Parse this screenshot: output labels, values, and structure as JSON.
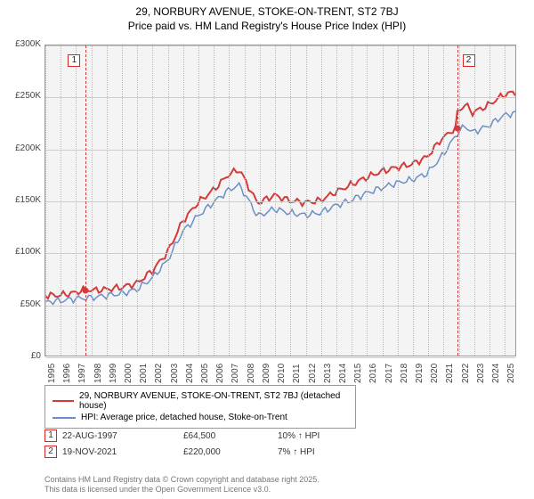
{
  "title": "29, NORBURY AVENUE, STOKE-ON-TRENT, ST2 7BJ",
  "subtitle": "Price paid vs. HM Land Registry's House Price Index (HPI)",
  "chart": {
    "type": "line",
    "background_color": "#f4f4f4",
    "grid_color": "#cccccc",
    "border_color": "#999999",
    "x_range": [
      1995,
      2025.8
    ],
    "y_range": [
      0,
      300000
    ],
    "y_ticks": [
      0,
      50000,
      100000,
      150000,
      200000,
      250000,
      300000
    ],
    "y_tick_labels": [
      "£0",
      "£50K",
      "£100K",
      "£150K",
      "£200K",
      "£250K",
      "£300K"
    ],
    "x_ticks": [
      1995,
      1996,
      1997,
      1998,
      1999,
      2000,
      2001,
      2002,
      2003,
      2004,
      2005,
      2006,
      2007,
      2008,
      2009,
      2010,
      2011,
      2012,
      2013,
      2014,
      2015,
      2016,
      2017,
      2018,
      2019,
      2020,
      2021,
      2022,
      2023,
      2024,
      2025
    ],
    "ref_lines": [
      {
        "x": 1997.64,
        "color": "#d43a3a",
        "label": "1"
      },
      {
        "x": 2021.88,
        "color": "#d43a3a",
        "label": "2"
      }
    ],
    "series": [
      {
        "name": "price_paid",
        "label": "29, NORBURY AVENUE, STOKE-ON-TRENT, ST2 7BJ (detached house)",
        "color": "#d43a3a",
        "line_width": 2,
        "markers": [
          {
            "x": 1997.64,
            "y": 64500
          },
          {
            "x": 2021.88,
            "y": 220000
          }
        ],
        "data": [
          [
            1995,
            58000
          ],
          [
            1996,
            58500
          ],
          [
            1997,
            61000
          ],
          [
            1997.64,
            64500
          ],
          [
            1998,
            63000
          ],
          [
            1999,
            64000
          ],
          [
            2000,
            66000
          ],
          [
            2001,
            70000
          ],
          [
            2002,
            82000
          ],
          [
            2003,
            100000
          ],
          [
            2004,
            130000
          ],
          [
            2005,
            148000
          ],
          [
            2006,
            160000
          ],
          [
            2007,
            175000
          ],
          [
            2007.7,
            180000
          ],
          [
            2008,
            172000
          ],
          [
            2008.8,
            150000
          ],
          [
            2009,
            148000
          ],
          [
            2010,
            155000
          ],
          [
            2011,
            150000
          ],
          [
            2012,
            148000
          ],
          [
            2013,
            150000
          ],
          [
            2014,
            158000
          ],
          [
            2015,
            165000
          ],
          [
            2016,
            172000
          ],
          [
            2017,
            178000
          ],
          [
            2018,
            182000
          ],
          [
            2019,
            185000
          ],
          [
            2020,
            192000
          ],
          [
            2021,
            210000
          ],
          [
            2021.88,
            220000
          ],
          [
            2022,
            235000
          ],
          [
            2022.5,
            243000
          ],
          [
            2023,
            235000
          ],
          [
            2024,
            242000
          ],
          [
            2025,
            252000
          ],
          [
            2025.8,
            255000
          ]
        ]
      },
      {
        "name": "hpi",
        "label": "HPI: Average price, detached house, Stoke-on-Trent",
        "color": "#6a8fc7",
        "line_width": 1.5,
        "data": [
          [
            1995,
            52000
          ],
          [
            1996,
            53000
          ],
          [
            1997,
            55000
          ],
          [
            1998,
            56000
          ],
          [
            1999,
            58000
          ],
          [
            2000,
            60000
          ],
          [
            2001,
            64000
          ],
          [
            2002,
            75000
          ],
          [
            2003,
            92000
          ],
          [
            2004,
            120000
          ],
          [
            2005,
            135000
          ],
          [
            2006,
            148000
          ],
          [
            2007,
            160000
          ],
          [
            2007.7,
            165000
          ],
          [
            2008,
            158000
          ],
          [
            2008.8,
            138000
          ],
          [
            2009,
            135000
          ],
          [
            2010,
            142000
          ],
          [
            2011,
            138000
          ],
          [
            2012,
            136000
          ],
          [
            2013,
            138000
          ],
          [
            2014,
            145000
          ],
          [
            2015,
            150000
          ],
          [
            2016,
            157000
          ],
          [
            2017,
            162000
          ],
          [
            2018,
            167000
          ],
          [
            2019,
            170000
          ],
          [
            2020,
            176000
          ],
          [
            2021,
            193000
          ],
          [
            2022,
            215000
          ],
          [
            2022.5,
            222000
          ],
          [
            2023,
            216000
          ],
          [
            2024,
            222000
          ],
          [
            2025,
            232000
          ],
          [
            2025.8,
            235000
          ]
        ]
      }
    ]
  },
  "transactions": [
    {
      "marker": "1",
      "date": "22-AUG-1997",
      "price": "£64,500",
      "delta": "10% ↑ HPI"
    },
    {
      "marker": "2",
      "date": "19-NOV-2021",
      "price": "£220,000",
      "delta": "7% ↑ HPI"
    }
  ],
  "credit_line1": "Contains HM Land Registry data © Crown copyright and database right 2025.",
  "credit_line2": "This data is licensed under the Open Government Licence v3.0."
}
